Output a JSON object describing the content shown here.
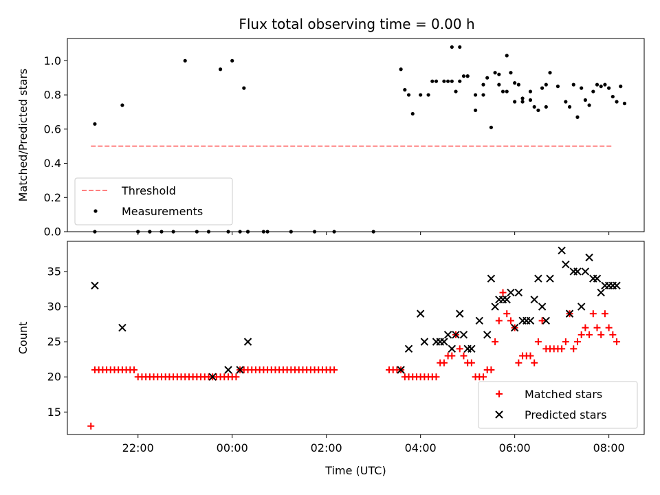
{
  "chart_data": [
    {
      "type": "scatter",
      "title": "Flux total observing time = 0.00 h",
      "ylabel": "Matched/Predicted stars",
      "xlabel": "",
      "ylim": [
        0,
        1.13
      ],
      "yticks": [
        "0.0",
        "0.2",
        "0.4",
        "0.6",
        "0.8",
        "1.0"
      ],
      "xlim": [
        "20:30",
        "08:45"
      ],
      "xticks": [
        "22:00",
        "00:00",
        "02:00",
        "04:00",
        "06:00",
        "08:00"
      ],
      "legend": {
        "position": "lower-left",
        "entries": [
          "Threshold",
          "Measurements"
        ]
      },
      "threshold": {
        "name": "Threshold",
        "value": 0.5,
        "x_start": "21:00",
        "x_end": "08:05",
        "color": "#ff7f7f"
      },
      "series": [
        {
          "name": "Measurements",
          "color": "#000000",
          "x": [
            "21:05",
            "21:40",
            "22:00",
            "22:00",
            "22:15",
            "22:30",
            "22:45",
            "23:00",
            "23:15",
            "23:30",
            "23:45",
            "00:00",
            "00:15",
            "00:20",
            "00:45",
            "01:15",
            "01:45",
            "02:10",
            "03:35",
            "03:50",
            "04:00",
            "04:15",
            "04:30",
            "04:40",
            "04:45",
            "04:50",
            "05:00",
            "05:10",
            "05:20",
            "05:30",
            "05:40",
            "05:50",
            "05:55",
            "06:00",
            "06:10",
            "06:20",
            "06:30",
            "06:40",
            "06:45",
            "06:55",
            "07:10",
            "07:20",
            "07:35",
            "07:45",
            "08:00",
            "21:05",
            "22:15",
            "23:55",
            "00:10",
            "00:20",
            "00:40",
            "03:40",
            "03:45",
            "04:10",
            "04:20",
            "04:35",
            "04:40",
            "04:50",
            "04:55",
            "05:00",
            "05:10",
            "05:20",
            "05:25",
            "05:35",
            "05:40",
            "05:45",
            "05:50",
            "06:00",
            "06:05",
            "06:10",
            "06:20",
            "06:25",
            "06:35",
            "06:40",
            "07:05",
            "07:15",
            "07:25",
            "07:30",
            "07:40",
            "07:50",
            "07:55",
            "08:05",
            "08:10",
            "08:15",
            "08:20",
            "03:00"
          ],
          "y": [
            0.63,
            0.74,
            0,
            0,
            0,
            0,
            0,
            1.0,
            0,
            0,
            0.95,
            1.0,
            0.84,
            0,
            0,
            0,
            0,
            0,
            0.95,
            0.69,
            0.8,
            0.88,
            0.88,
            1.08,
            0.82,
            0.88,
            0.91,
            0.71,
            0.8,
            0.61,
            0.86,
            1.03,
            0.93,
            0.87,
            0.78,
            0.82,
            0.71,
            0.73,
            0.93,
            0.85,
            0.73,
            0.67,
            0.74,
            0.86,
            0.84,
            0,
            0,
            0,
            0,
            0,
            0,
            0.83,
            0.8,
            0.8,
            0.88,
            0.88,
            0.88,
            1.08,
            0.91,
            0.91,
            0.8,
            0.86,
            0.9,
            0.93,
            0.92,
            0.82,
            0.82,
            0.76,
            0.86,
            0.76,
            0.77,
            0.73,
            0.84,
            0.86,
            0.76,
            0.86,
            0.84,
            0.77,
            0.82,
            0.85,
            0.86,
            0.79,
            0.76,
            0.85,
            0.75,
            0
          ]
        }
      ]
    },
    {
      "type": "scatter",
      "title": "",
      "ylabel": "Count",
      "xlabel": "Time (UTC)",
      "ylim": [
        11.8,
        39.3
      ],
      "yticks": [
        "15",
        "20",
        "25",
        "30",
        "35"
      ],
      "xlim": [
        "20:30",
        "08:45"
      ],
      "xticks": [
        "22:00",
        "00:00",
        "02:00",
        "04:00",
        "06:00",
        "08:00"
      ],
      "legend": {
        "position": "lower-right",
        "entries": [
          "Matched stars",
          "Predicted stars"
        ]
      },
      "series": [
        {
          "name": "Matched stars",
          "color": "#ff0000",
          "marker": "plus",
          "x": [
            "21:00",
            "21:05",
            "21:10",
            "21:15",
            "21:20",
            "21:25",
            "21:30",
            "21:35",
            "21:40",
            "21:45",
            "21:50",
            "21:55",
            "22:00",
            "22:05",
            "22:10",
            "22:15",
            "22:20",
            "22:25",
            "22:30",
            "22:35",
            "22:40",
            "22:45",
            "22:50",
            "22:55",
            "23:00",
            "23:05",
            "23:10",
            "23:15",
            "23:20",
            "23:25",
            "23:30",
            "23:35",
            "23:40",
            "23:45",
            "23:50",
            "23:55",
            "00:00",
            "00:05",
            "00:10",
            "00:15",
            "00:20",
            "00:25",
            "00:30",
            "00:35",
            "00:40",
            "00:45",
            "00:50",
            "00:55",
            "01:00",
            "01:05",
            "01:10",
            "01:15",
            "01:20",
            "01:25",
            "01:30",
            "01:35",
            "01:40",
            "01:45",
            "01:50",
            "01:55",
            "02:00",
            "02:05",
            "02:10",
            "03:20",
            "03:25",
            "03:30",
            "03:35",
            "03:40",
            "03:45",
            "03:50",
            "03:55",
            "04:00",
            "04:05",
            "04:10",
            "04:15",
            "04:20",
            "04:25",
            "04:30",
            "04:35",
            "04:40",
            "04:45",
            "04:50",
            "04:55",
            "05:00",
            "05:05",
            "05:10",
            "05:15",
            "05:20",
            "05:25",
            "05:30",
            "05:35",
            "05:40",
            "05:45",
            "05:50",
            "05:55",
            "06:00",
            "06:05",
            "06:10",
            "06:15",
            "06:20",
            "06:25",
            "06:30",
            "06:35",
            "06:40",
            "06:45",
            "06:50",
            "06:55",
            "07:00",
            "07:05",
            "07:10",
            "07:15",
            "07:20",
            "07:25",
            "07:30",
            "07:35",
            "07:40",
            "07:45",
            "07:50",
            "07:55",
            "08:00",
            "08:05",
            "08:10"
          ],
          "y": [
            13,
            21,
            21,
            21,
            21,
            21,
            21,
            21,
            21,
            21,
            21,
            21,
            20,
            20,
            20,
            20,
            20,
            20,
            20,
            20,
            20,
            20,
            20,
            20,
            20,
            20,
            20,
            20,
            20,
            20,
            20,
            20,
            20,
            20,
            20,
            20,
            20,
            20,
            21,
            21,
            21,
            21,
            21,
            21,
            21,
            21,
            21,
            21,
            21,
            21,
            21,
            21,
            21,
            21,
            21,
            21,
            21,
            21,
            21,
            21,
            21,
            21,
            21,
            21,
            21,
            21,
            21,
            20,
            20,
            20,
            20,
            20,
            20,
            20,
            20,
            20,
            22,
            22,
            23,
            23,
            26,
            24,
            23,
            22,
            22,
            20,
            20,
            20,
            21,
            21,
            25,
            28,
            32,
            29,
            28,
            27,
            22,
            23,
            23,
            23,
            22,
            25,
            28,
            24,
            24,
            24,
            24,
            24,
            25,
            29,
            24,
            25,
            26,
            27,
            26,
            29,
            27,
            26,
            29,
            27,
            26,
            25
          ],
          "x_note": ""
        },
        {
          "name": "Predicted stars",
          "color": "#000000",
          "marker": "x",
          "x": [
            "21:05",
            "21:40",
            "23:35",
            "23:55",
            "00:10",
            "00:20",
            "03:35",
            "03:45",
            "04:00",
            "04:05",
            "04:20",
            "04:25",
            "04:30",
            "04:35",
            "04:40",
            "04:45",
            "04:50",
            "04:55",
            "05:00",
            "05:05",
            "05:15",
            "05:25",
            "05:30",
            "05:35",
            "05:40",
            "05:45",
            "05:50",
            "05:55",
            "06:00",
            "06:05",
            "06:10",
            "06:15",
            "06:20",
            "06:25",
            "06:30",
            "06:35",
            "06:40",
            "06:45",
            "07:00",
            "07:05",
            "07:10",
            "07:15",
            "07:20",
            "07:25",
            "07:30",
            "07:35",
            "07:40",
            "07:45",
            "07:50",
            "07:55",
            "08:00",
            "08:05",
            "08:10"
          ],
          "y": [
            33,
            27,
            20,
            21,
            21,
            25,
            21,
            24,
            29,
            25,
            25,
            25,
            25,
            26,
            24,
            26,
            29,
            26,
            24,
            24,
            28,
            26,
            34,
            30,
            31,
            31,
            31,
            32,
            27,
            32,
            28,
            28,
            28,
            31,
            34,
            30,
            28,
            34,
            38,
            36,
            29,
            35,
            35,
            30,
            35,
            37,
            34,
            34,
            32,
            33,
            33,
            33,
            33
          ]
        }
      ]
    }
  ]
}
